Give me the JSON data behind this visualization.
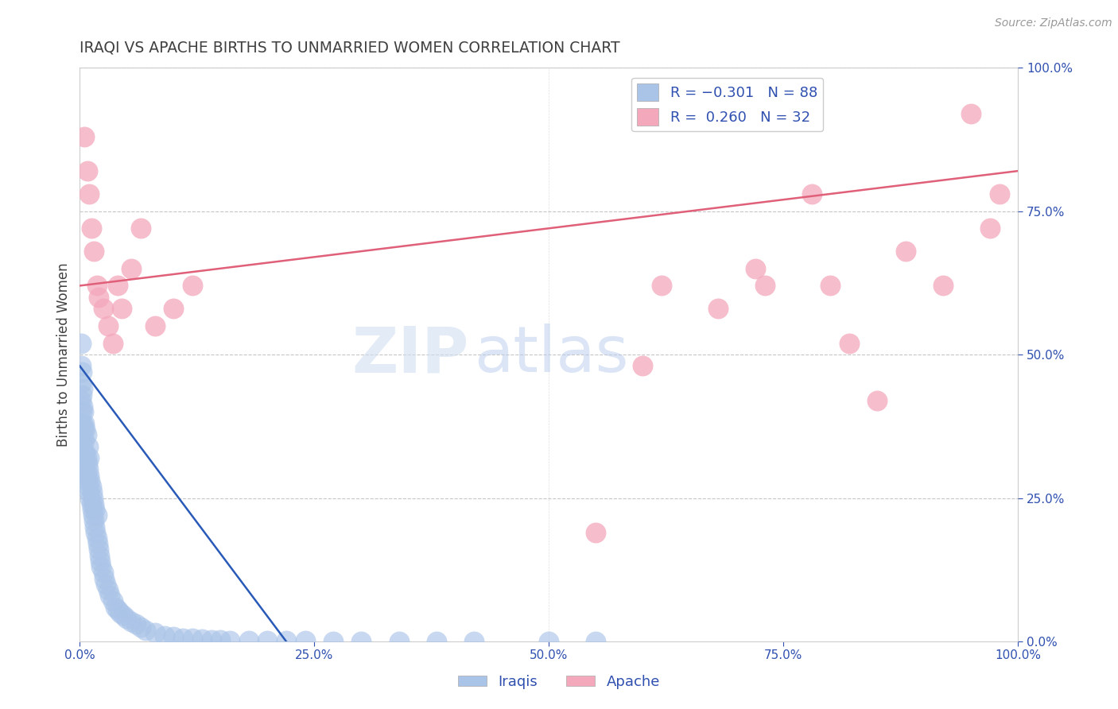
{
  "title": "IRAQI VS APACHE BIRTHS TO UNMARRIED WOMEN CORRELATION CHART",
  "source": "Source: ZipAtlas.com",
  "ylabel": "Births to Unmarried Women",
  "watermark_zip": "ZIP",
  "watermark_atlas": "atlas",
  "iraqis_R": -0.301,
  "iraqis_N": 88,
  "apache_R": 0.26,
  "apache_N": 32,
  "legend_labels": [
    "Iraqis",
    "Apache"
  ],
  "iraqi_color": "#aac4e8",
  "apache_color": "#f4a8bc",
  "iraqi_line_color": "#2a5ab8",
  "apache_line_color": "#e0607a",
  "background_color": "#ffffff",
  "grid_color": "#c0c0c0",
  "title_color": "#404040",
  "tick_color": "#3050b0",
  "xlim": [
    0.0,
    1.0
  ],
  "ylim": [
    0.0,
    1.0
  ],
  "right_yticks": [
    0.0,
    0.25,
    0.5,
    0.75,
    1.0
  ],
  "right_yticklabels": [
    "0.0%",
    "25.0%",
    "50.0%",
    "75.0%",
    "100.0%"
  ],
  "xticks": [
    0.0,
    0.25,
    0.5,
    0.75,
    1.0
  ],
  "xticklabels": [
    "0.0%",
    "25.0%",
    "50.0%",
    "75.0%",
    "100.0%"
  ],
  "iraqi_x": [
    0.001,
    0.001,
    0.001,
    0.001,
    0.001,
    0.002,
    0.002,
    0.002,
    0.002,
    0.003,
    0.003,
    0.003,
    0.003,
    0.004,
    0.004,
    0.004,
    0.005,
    0.005,
    0.005,
    0.006,
    0.006,
    0.006,
    0.007,
    0.007,
    0.007,
    0.008,
    0.008,
    0.009,
    0.009,
    0.009,
    0.01,
    0.01,
    0.01,
    0.011,
    0.011,
    0.012,
    0.012,
    0.013,
    0.013,
    0.014,
    0.014,
    0.015,
    0.015,
    0.016,
    0.016,
    0.017,
    0.018,
    0.018,
    0.019,
    0.02,
    0.021,
    0.022,
    0.023,
    0.025,
    0.026,
    0.028,
    0.03,
    0.032,
    0.035,
    0.038,
    0.04,
    0.043,
    0.046,
    0.05,
    0.055,
    0.06,
    0.065,
    0.07,
    0.08,
    0.09,
    0.1,
    0.11,
    0.12,
    0.13,
    0.14,
    0.15,
    0.16,
    0.18,
    0.2,
    0.22,
    0.24,
    0.27,
    0.3,
    0.34,
    0.38,
    0.42,
    0.5,
    0.55
  ],
  "iraqi_y": [
    0.38,
    0.42,
    0.45,
    0.48,
    0.52,
    0.36,
    0.4,
    0.43,
    0.47,
    0.35,
    0.38,
    0.41,
    0.44,
    0.33,
    0.37,
    0.4,
    0.32,
    0.35,
    0.38,
    0.3,
    0.33,
    0.37,
    0.29,
    0.32,
    0.36,
    0.28,
    0.31,
    0.27,
    0.3,
    0.34,
    0.26,
    0.29,
    0.32,
    0.25,
    0.28,
    0.24,
    0.27,
    0.23,
    0.26,
    0.22,
    0.25,
    0.21,
    0.24,
    0.2,
    0.23,
    0.19,
    0.18,
    0.22,
    0.17,
    0.16,
    0.15,
    0.14,
    0.13,
    0.12,
    0.11,
    0.1,
    0.09,
    0.08,
    0.07,
    0.06,
    0.055,
    0.05,
    0.045,
    0.04,
    0.035,
    0.03,
    0.025,
    0.02,
    0.015,
    0.01,
    0.008,
    0.006,
    0.005,
    0.004,
    0.003,
    0.003,
    0.002,
    0.002,
    0.001,
    0.001,
    0.001,
    0.0,
    0.0,
    0.0,
    0.0,
    0.0,
    0.0,
    0.0
  ],
  "apache_x": [
    0.005,
    0.008,
    0.01,
    0.012,
    0.015,
    0.018,
    0.02,
    0.025,
    0.03,
    0.035,
    0.04,
    0.045,
    0.055,
    0.065,
    0.08,
    0.1,
    0.12,
    0.55,
    0.6,
    0.62,
    0.68,
    0.72,
    0.73,
    0.78,
    0.8,
    0.82,
    0.85,
    0.88,
    0.92,
    0.95,
    0.97,
    0.98
  ],
  "apache_y": [
    0.88,
    0.82,
    0.78,
    0.72,
    0.68,
    0.62,
    0.6,
    0.58,
    0.55,
    0.52,
    0.62,
    0.58,
    0.65,
    0.72,
    0.55,
    0.58,
    0.62,
    0.19,
    0.48,
    0.62,
    0.58,
    0.65,
    0.62,
    0.78,
    0.62,
    0.52,
    0.42,
    0.68,
    0.62,
    0.92,
    0.72,
    0.78
  ],
  "iraqi_line_x0": 0.0,
  "iraqi_line_y0": 0.48,
  "iraqi_line_x1": 0.22,
  "iraqi_line_y1": 0.0,
  "apache_line_x0": 0.0,
  "apache_line_y0": 0.62,
  "apache_line_x1": 1.0,
  "apache_line_y1": 0.82
}
